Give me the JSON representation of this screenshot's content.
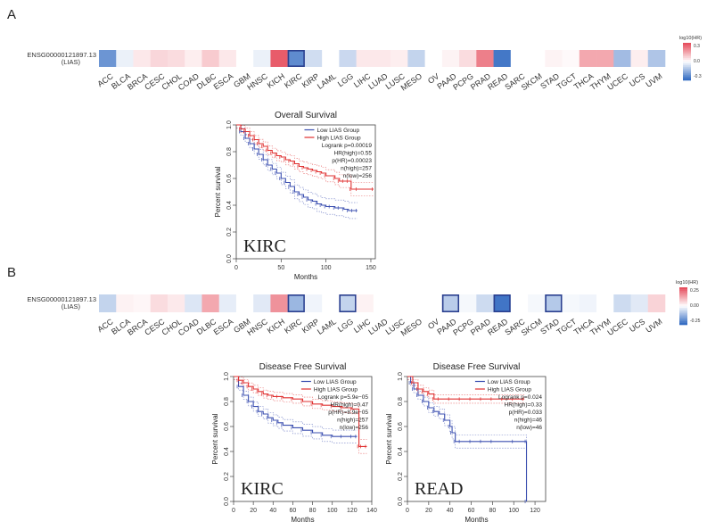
{
  "panels": [
    {
      "letter": "A",
      "heatmap": {
        "row_label_line1": "ENSG00000121897.13",
        "row_label_line2": "(LIAS)",
        "legend_title": "log10(HR)",
        "legend_ticks": [
          "0.3",
          "0.0",
          "-0.3"
        ],
        "cancers": [
          "ACC",
          "BLCA",
          "BRCA",
          "CESC",
          "CHOL",
          "COAD",
          "DLBC",
          "ESCA",
          "GBM",
          "HNSC",
          "KICH",
          "KIRC",
          "KIRP",
          "LAML",
          "LGG",
          "LIHC",
          "LUAD",
          "LUSC",
          "MESO",
          "OV",
          "PAAD",
          "PCPG",
          "PRAD",
          "READ",
          "SARC",
          "SKCM",
          "STAD",
          "TGCT",
          "THCA",
          "THYM",
          "UCEC",
          "UCS",
          "UVM"
        ],
        "log10_hr": [
          -0.22,
          -0.03,
          0.04,
          0.07,
          0.06,
          0.03,
          0.09,
          0.04,
          0.0,
          -0.03,
          0.28,
          -0.24,
          -0.07,
          0.0,
          -0.08,
          0.04,
          0.04,
          0.03,
          -0.09,
          0.0,
          0.02,
          0.06,
          0.22,
          -0.28,
          0.0,
          0.0,
          0.02,
          0.01,
          0.15,
          0.15,
          -0.14,
          0.03,
          -0.12
        ],
        "highlighted": [
          "KIRC"
        ]
      }
    },
    {
      "letter": "B",
      "heatmap": {
        "row_label_line1": "ENSG00000121897.13",
        "row_label_line2": "(LIAS)",
        "legend_title": "log10(HR)",
        "legend_ticks": [
          "0.25",
          "0.00",
          "-0.25"
        ],
        "cancers": [
          "ACC",
          "BLCA",
          "BRCA",
          "CESC",
          "CHOL",
          "COAD",
          "DLBC",
          "ESCA",
          "GBM",
          "HNSC",
          "KICH",
          "KIRC",
          "KIRP",
          "LAML",
          "LGG",
          "LIHC",
          "LUAD",
          "LUSC",
          "MESO",
          "OV",
          "PAAD",
          "PCPG",
          "PRAD",
          "READ",
          "SARC",
          "SKCM",
          "STAD",
          "TGCT",
          "THCA",
          "THYM",
          "UCEC",
          "UCS",
          "UVM"
        ],
        "log10_hr": [
          -0.12,
          0.03,
          0.02,
          0.08,
          0.05,
          -0.07,
          0.2,
          -0.05,
          0.0,
          -0.06,
          0.25,
          -0.2,
          -0.03,
          0.0,
          -0.12,
          0.03,
          0.0,
          0.0,
          0.0,
          0.0,
          -0.14,
          -0.02,
          -0.1,
          -0.38,
          0.0,
          -0.02,
          -0.15,
          -0.02,
          -0.03,
          0.0,
          -0.1,
          -0.06,
          0.1
        ],
        "highlighted": [
          "KIRC",
          "LGG",
          "PAAD",
          "READ",
          "STAD"
        ]
      }
    }
  ],
  "chart_data": [
    {
      "type": "line",
      "title": "Overall Survival",
      "panel_label": "KIRC",
      "xlabel": "Months",
      "ylabel": "Percent survival",
      "xlim": [
        0,
        155
      ],
      "ylim": [
        0,
        1.0
      ],
      "xticks": [
        0,
        50,
        100,
        150
      ],
      "yticks": [
        "0.0",
        "0.2",
        "0.4",
        "0.6",
        "0.8",
        "1.0"
      ],
      "legend": [
        "Low LIAS Group",
        "High LIAS Group",
        "Logrank p=0.00019",
        "HR(high)=0.55",
        "p(HR)=0.00023",
        "n(high)=257",
        "n(low)=256"
      ],
      "series": [
        {
          "name": "Low LIAS Group",
          "color": "#3b4fb0",
          "x": [
            0,
            5,
            10,
            15,
            20,
            25,
            30,
            35,
            40,
            45,
            50,
            55,
            60,
            65,
            70,
            75,
            80,
            85,
            90,
            95,
            100,
            105,
            110,
            115,
            120,
            125,
            130,
            135
          ],
          "y": [
            1.0,
            0.95,
            0.9,
            0.86,
            0.82,
            0.78,
            0.74,
            0.7,
            0.67,
            0.64,
            0.6,
            0.57,
            0.54,
            0.5,
            0.48,
            0.46,
            0.44,
            0.43,
            0.41,
            0.4,
            0.39,
            0.39,
            0.38,
            0.38,
            0.37,
            0.36,
            0.36,
            0.36
          ]
        },
        {
          "name": "High LIAS Group",
          "color": "#e03030",
          "x": [
            0,
            5,
            10,
            15,
            20,
            25,
            30,
            35,
            40,
            45,
            50,
            55,
            60,
            65,
            70,
            75,
            80,
            85,
            90,
            95,
            100,
            110,
            115,
            120,
            125,
            128,
            135,
            153
          ],
          "y": [
            1.0,
            0.97,
            0.95,
            0.92,
            0.89,
            0.86,
            0.84,
            0.81,
            0.79,
            0.77,
            0.76,
            0.74,
            0.73,
            0.71,
            0.69,
            0.68,
            0.67,
            0.66,
            0.65,
            0.64,
            0.62,
            0.6,
            0.58,
            0.58,
            0.58,
            0.52,
            0.52,
            0.52
          ]
        }
      ]
    },
    {
      "type": "line",
      "title": "Disease Free Survival",
      "panel_label": "KIRC",
      "xlabel": "Months",
      "ylabel": "Percent survival",
      "xlim": [
        0,
        140
      ],
      "ylim": [
        0,
        1.0
      ],
      "xticks": [
        0,
        20,
        40,
        60,
        80,
        100,
        120,
        140
      ],
      "yticks": [
        "0.0",
        "0.2",
        "0.4",
        "0.6",
        "0.8",
        "1.0"
      ],
      "legend": [
        "Low LIAS Group",
        "High LIAS Group",
        "Logrank p=5.9e−05",
        "HR(high)=0.47",
        "p(HR)=8.9e−05",
        "n(high)=257",
        "n(low)=256"
      ],
      "series": [
        {
          "name": "Low LIAS Group",
          "color": "#3b4fb0",
          "x": [
            0,
            5,
            10,
            15,
            20,
            25,
            30,
            35,
            40,
            45,
            50,
            60,
            70,
            80,
            90,
            100,
            110,
            120,
            125
          ],
          "y": [
            1.0,
            0.92,
            0.85,
            0.8,
            0.76,
            0.72,
            0.7,
            0.67,
            0.65,
            0.63,
            0.61,
            0.59,
            0.57,
            0.55,
            0.53,
            0.52,
            0.52,
            0.52,
            0.52
          ]
        },
        {
          "name": "High LIAS Group",
          "color": "#e03030",
          "x": [
            0,
            5,
            10,
            15,
            20,
            25,
            30,
            35,
            40,
            45,
            50,
            60,
            70,
            80,
            90,
            100,
            110,
            120,
            127,
            130,
            135
          ],
          "y": [
            1.0,
            0.97,
            0.95,
            0.92,
            0.9,
            0.88,
            0.86,
            0.85,
            0.84,
            0.84,
            0.83,
            0.82,
            0.8,
            0.78,
            0.77,
            0.76,
            0.75,
            0.74,
            0.44,
            0.44,
            0.44
          ]
        }
      ]
    },
    {
      "type": "line",
      "title": "Disease Free Survival",
      "panel_label": "READ",
      "xlabel": "Months",
      "ylabel": "Percent survival",
      "xlim": [
        0,
        130
      ],
      "ylim": [
        0,
        1.0
      ],
      "xticks": [
        0,
        20,
        40,
        60,
        80,
        100,
        120
      ],
      "yticks": [
        "0.0",
        "0.2",
        "0.4",
        "0.6",
        "0.8",
        "1.0"
      ],
      "legend": [
        "Low LIAS Group",
        "High LIAS Group",
        "Logrank p=0.024",
        "HR(high)=0.33",
        "p(HR)=0.033",
        "n(high)=46",
        "n(low)=46"
      ],
      "series": [
        {
          "name": "Low LIAS Group",
          "color": "#3b4fb0",
          "x": [
            0,
            3,
            6,
            10,
            15,
            20,
            25,
            30,
            35,
            40,
            42,
            45,
            50,
            60,
            70,
            80,
            100,
            112,
            112
          ],
          "y": [
            1.0,
            0.95,
            0.9,
            0.85,
            0.8,
            0.75,
            0.72,
            0.7,
            0.65,
            0.6,
            0.55,
            0.48,
            0.48,
            0.48,
            0.48,
            0.48,
            0.48,
            0.48,
            0.0
          ]
        },
        {
          "name": "High LIAS Group",
          "color": "#e03030",
          "x": [
            0,
            5,
            10,
            15,
            20,
            25,
            30,
            40,
            50,
            60,
            70,
            80,
            90,
            100,
            110
          ],
          "y": [
            1.0,
            0.95,
            0.9,
            0.88,
            0.86,
            0.82,
            0.82,
            0.82,
            0.82,
            0.82,
            0.82,
            0.82,
            0.82,
            0.82,
            0.82
          ]
        }
      ]
    }
  ]
}
